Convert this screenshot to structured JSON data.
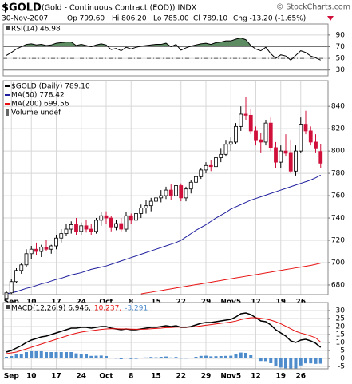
{
  "header": {
    "symbol": "$GOLD",
    "description": "(Gold - Continuous Contract (EOD)) INDX",
    "copyright": "© StockCharts.com",
    "date": "30-Nov-2007",
    "open": "Op 799.60",
    "high": "Hi 806.20",
    "low": "Lo 785.00",
    "close": "Cl 789.10",
    "change": "Chg -13.20 (-1.65%)"
  },
  "chart_data": [
    {
      "type": "line",
      "title": "RSI(14) 46.98",
      "ylim": [
        20,
        109
      ],
      "yticks": [
        90,
        70,
        50,
        30
      ],
      "shade_above": 70,
      "shade_below": 30,
      "shade_color": "#5e8c62",
      "dashed_level": 50,
      "grid": true,
      "series": [
        {
          "name": "RSI(14)",
          "color": "#000000",
          "values": [
            55,
            60,
            66,
            70,
            74,
            75,
            73,
            74,
            72,
            73,
            76,
            77,
            78,
            78,
            72,
            74,
            72,
            70,
            73,
            75,
            73,
            65,
            67,
            63,
            69,
            66,
            69,
            71,
            72,
            73,
            74,
            74,
            76,
            70,
            74,
            64,
            68,
            71,
            73,
            75,
            76,
            74,
            77,
            78,
            80,
            80,
            83,
            85,
            82,
            72,
            66,
            63,
            69,
            58,
            50,
            56,
            54,
            47,
            55,
            63,
            60,
            54,
            51,
            46.98
          ]
        }
      ]
    },
    {
      "type": "candlestick",
      "ylim": [
        671.4,
        863
      ],
      "yticks": [
        680,
        700,
        720,
        740,
        760,
        780,
        800,
        820,
        840
      ],
      "grid": true,
      "volume_label": "Volume undef",
      "categories": [
        null,
        "Sep",
        null,
        null,
        null,
        "10",
        null,
        null,
        null,
        null,
        "17",
        null,
        null,
        null,
        null,
        "24",
        null,
        null,
        null,
        null,
        "Oct",
        null,
        null,
        null,
        null,
        "8",
        null,
        null,
        null,
        null,
        "15",
        null,
        null,
        null,
        null,
        "22",
        null,
        null,
        null,
        null,
        "29",
        null,
        null,
        null,
        null,
        "Nov5",
        null,
        null,
        null,
        null,
        "12",
        null,
        null,
        null,
        null,
        "19",
        null,
        null,
        null,
        "26",
        null,
        null,
        null,
        null
      ],
      "series": [
        {
          "name": "$GOLD (Daily) 789.10",
          "up_color": "#000000",
          "down_color": "#d0103a",
          "open": [
            668,
            673,
            683,
            693,
            698,
            708,
            712,
            710,
            714,
            712,
            715,
            722,
            726,
            730,
            734,
            728,
            733,
            730,
            728,
            738,
            742,
            740,
            732,
            735,
            730,
            742,
            738,
            744,
            749,
            751,
            755,
            758,
            760,
            765,
            760,
            769,
            758,
            766,
            772,
            777,
            783,
            787,
            786,
            794,
            797,
            806,
            808,
            822,
            833,
            832,
            818,
            810,
            808,
            825,
            803,
            790,
            800,
            798,
            782,
            800,
            824,
            818,
            808,
            799.6
          ],
          "high": [
            675,
            685,
            695,
            700,
            712,
            715,
            718,
            716,
            720,
            716,
            725,
            730,
            735,
            737,
            740,
            736,
            738,
            735,
            740,
            745,
            746,
            742,
            738,
            740,
            745,
            744,
            746,
            752,
            756,
            758,
            762,
            765,
            768,
            770,
            772,
            771,
            768,
            774,
            780,
            785,
            790,
            792,
            796,
            802,
            810,
            812,
            825,
            840,
            848,
            838,
            822,
            816,
            828,
            830,
            808,
            805,
            815,
            810,
            805,
            830,
            836,
            822,
            815,
            806.2
          ],
          "low": [
            665,
            672,
            682,
            690,
            696,
            703,
            707,
            705,
            710,
            708,
            712,
            718,
            724,
            726,
            725,
            725,
            727,
            725,
            726,
            733,
            735,
            728,
            729,
            728,
            728,
            735,
            735,
            740,
            744,
            746,
            752,
            754,
            757,
            756,
            758,
            755,
            755,
            762,
            768,
            775,
            780,
            782,
            784,
            790,
            795,
            800,
            806,
            818,
            828,
            815,
            805,
            798,
            805,
            800,
            785,
            785,
            795,
            780,
            778,
            798,
            815,
            805,
            798,
            785
          ],
          "close": [
            673,
            683,
            693,
            698,
            708,
            712,
            710,
            714,
            712,
            715,
            722,
            726,
            730,
            734,
            728,
            733,
            730,
            728,
            738,
            742,
            740,
            732,
            735,
            730,
            742,
            738,
            744,
            749,
            751,
            755,
            758,
            760,
            765,
            760,
            769,
            758,
            766,
            772,
            777,
            783,
            787,
            786,
            794,
            797,
            806,
            808,
            822,
            833,
            832,
            818,
            810,
            808,
            825,
            803,
            790,
            800,
            798,
            782,
            800,
            824,
            818,
            808,
            802,
            789.1
          ]
        },
        {
          "name": "MA(50) 778.42",
          "color": "#1f1f9e",
          "values": [
            672,
            673,
            674,
            675.5,
            677,
            678,
            679.5,
            681,
            682,
            683.5,
            685,
            686,
            687.5,
            689,
            690,
            691,
            692.5,
            694,
            695,
            696,
            697,
            698.5,
            700,
            701.5,
            703,
            704.5,
            706,
            707.5,
            709,
            710.5,
            712,
            713.5,
            715,
            716.5,
            718,
            720,
            723,
            726,
            729,
            731.5,
            734,
            737,
            740,
            742.5,
            745,
            748,
            750,
            752,
            754,
            756,
            757.5,
            759,
            760.5,
            762,
            763.5,
            765,
            766.5,
            768,
            769.5,
            771,
            772.5,
            774,
            776,
            778.42
          ]
        },
        {
          "name": "MA(200) 699.56",
          "color": "#e81010",
          "values": [
            null,
            null,
            null,
            null,
            null,
            null,
            null,
            null,
            null,
            null,
            null,
            null,
            null,
            null,
            null,
            null,
            null,
            null,
            null,
            null,
            null,
            null,
            null,
            null,
            null,
            null,
            null,
            672,
            672.8,
            673.5,
            674.3,
            675,
            675.8,
            676.5,
            677.3,
            678,
            678.8,
            679.5,
            680.3,
            681,
            681.8,
            682.5,
            683.3,
            684,
            684.8,
            685.5,
            686.3,
            687,
            687.8,
            688.5,
            689.3,
            690,
            690.8,
            691.5,
            692.3,
            693,
            693.8,
            694.5,
            695.3,
            696,
            696.8,
            697.5,
            698.5,
            699.56
          ]
        }
      ]
    },
    {
      "type": "macd",
      "ylim": [
        -6.5,
        35
      ],
      "yticks": [
        30,
        25,
        20,
        15,
        10,
        5,
        0,
        -5
      ],
      "grid": true,
      "categories": [
        null,
        "Sep",
        null,
        null,
        null,
        "10",
        null,
        null,
        null,
        null,
        "17",
        null,
        null,
        null,
        null,
        "24",
        null,
        null,
        null,
        null,
        "Oct",
        null,
        null,
        null,
        null,
        "8",
        null,
        null,
        null,
        null,
        "15",
        null,
        null,
        null,
        null,
        "22",
        null,
        null,
        null,
        null,
        "29",
        null,
        null,
        null,
        null,
        "Nov5",
        null,
        null,
        null,
        null,
        "12",
        null,
        null,
        null,
        null,
        "19",
        null,
        null,
        null,
        "26",
        null,
        null,
        null,
        null
      ],
      "series": [
        {
          "name": "MACD(12,26,9) 6.946,",
          "color": "#000000",
          "kind": "line",
          "values": [
            4,
            5,
            6.5,
            8,
            10,
            11.5,
            12.5,
            13.5,
            14,
            15,
            16,
            17,
            18,
            19,
            19,
            19.5,
            19.5,
            19,
            19.5,
            20,
            20,
            19,
            18.5,
            18,
            18.5,
            18,
            18,
            18.5,
            19,
            19.5,
            19.5,
            20,
            20.5,
            20,
            20.5,
            19.5,
            19.5,
            20,
            21,
            22,
            22.5,
            22.5,
            23,
            23.5,
            24,
            24.5,
            26,
            28,
            28.5,
            27.5,
            25.5,
            23.5,
            23,
            21,
            18,
            16,
            14,
            11,
            10,
            11.5,
            12,
            11,
            9.5,
            6.946
          ]
        },
        {
          "name": "10.237,",
          "color": "#e81010",
          "kind": "line",
          "values": [
            3,
            3.5,
            4,
            5,
            6,
            7,
            8,
            9,
            10,
            11,
            12,
            13,
            14,
            15,
            15.8,
            16.5,
            17,
            17.4,
            17.8,
            18.2,
            18.5,
            18.6,
            18.6,
            18.5,
            18.5,
            18.4,
            18.3,
            18.3,
            18.4,
            18.6,
            18.8,
            19,
            19.3,
            19.4,
            19.6,
            19.6,
            19.6,
            19.7,
            20,
            20.4,
            20.8,
            21.2,
            21.6,
            22,
            22.4,
            22.8,
            23.4,
            24.3,
            25,
            25.5,
            25.5,
            25.1,
            24.7,
            24,
            23,
            21.7,
            20.2,
            18.6,
            17,
            15.9,
            15.1,
            14.1,
            12.9,
            10.237
          ]
        },
        {
          "name": "-3.291",
          "color": "#4f8ccc",
          "kind": "histogram",
          "values": [
            1,
            1.5,
            2.5,
            3,
            4,
            4.5,
            4.5,
            4.5,
            4,
            4,
            4,
            4,
            4,
            4,
            3.2,
            3,
            2.5,
            1.6,
            1.7,
            1.8,
            1.5,
            0.4,
            -0.1,
            -0.5,
            0,
            -0.4,
            -0.3,
            0.2,
            0.6,
            0.9,
            0.7,
            1,
            1.2,
            0.6,
            0.9,
            -0.1,
            -0.1,
            0.3,
            1,
            1.6,
            1.7,
            1.3,
            1.4,
            1.5,
            1.6,
            1.7,
            2.6,
            3.7,
            3.5,
            2,
            0,
            -1.6,
            -1.7,
            -3,
            -5,
            -5.7,
            -6.2,
            -7.6,
            -7,
            -4.4,
            -3.1,
            -3.1,
            -3.4,
            -3.291
          ]
        }
      ]
    }
  ]
}
